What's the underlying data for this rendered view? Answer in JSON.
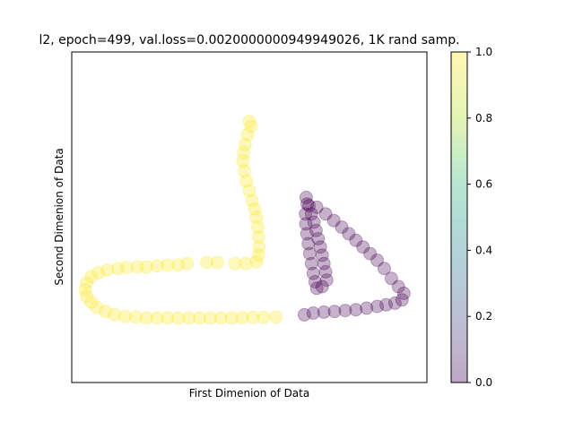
{
  "chart_data": {
    "type": "scatter",
    "title": "l2, epoch=499, val.loss=0.0020000000949949026, 1K rand samp.",
    "xlabel": "First Dimenion of Data",
    "ylabel": "Second Dimenion of Data",
    "xlim": [
      0,
      100
    ],
    "ylim": [
      0,
      100
    ],
    "x_ticks_visible": false,
    "y_ticks_visible": false,
    "grid": false,
    "colormap": "viridis",
    "colorbar": {
      "range": [
        0.0,
        1.0
      ],
      "ticks": [
        "0.0",
        "0.2",
        "0.4",
        "0.6",
        "0.8",
        "1.0"
      ],
      "low_color": "#440154",
      "high_color": "#fde725"
    },
    "marker_alpha": 0.3,
    "series": [
      {
        "label_value": 1.0,
        "color": "#fde725",
        "points": [
          [
            50.0,
            79.0
          ],
          [
            50.5,
            77.5
          ],
          [
            49.5,
            75.0
          ],
          [
            48.8,
            72.0
          ],
          [
            48.4,
            69.5
          ],
          [
            48.2,
            67.0
          ],
          [
            48.6,
            64.0
          ],
          [
            49.2,
            61.0
          ],
          [
            50.0,
            58.0
          ],
          [
            50.8,
            55.0
          ],
          [
            51.5,
            52.5
          ],
          [
            52.0,
            50.0
          ],
          [
            52.4,
            47.0
          ],
          [
            52.6,
            44.0
          ],
          [
            52.7,
            41.0
          ],
          [
            52.6,
            38.5
          ],
          [
            52.0,
            36.5
          ],
          [
            49.0,
            36.0
          ],
          [
            46.0,
            36.0
          ],
          [
            41.0,
            36.3
          ],
          [
            38.0,
            36.3
          ],
          [
            32.5,
            36.0
          ],
          [
            30.0,
            35.5
          ],
          [
            27.0,
            35.5
          ],
          [
            24.0,
            35.3
          ],
          [
            21.0,
            35.0
          ],
          [
            18.5,
            35.0
          ],
          [
            15.5,
            34.8
          ],
          [
            13.0,
            34.5
          ],
          [
            10.0,
            34.0
          ],
          [
            7.5,
            33.2
          ],
          [
            5.5,
            32.0
          ],
          [
            4.2,
            30.2
          ],
          [
            3.8,
            28.0
          ],
          [
            4.2,
            26.0
          ],
          [
            5.5,
            24.3
          ],
          [
            7.0,
            22.8
          ],
          [
            9.5,
            21.5
          ],
          [
            12.0,
            20.5
          ],
          [
            15.0,
            20.0
          ],
          [
            18.0,
            19.8
          ],
          [
            21.0,
            19.5
          ],
          [
            24.0,
            19.5
          ],
          [
            27.0,
            19.5
          ],
          [
            30.0,
            19.5
          ],
          [
            33.0,
            19.5
          ],
          [
            36.0,
            19.5
          ],
          [
            39.0,
            19.5
          ],
          [
            42.0,
            19.5
          ],
          [
            45.0,
            19.5
          ],
          [
            48.0,
            19.6
          ],
          [
            51.0,
            19.7
          ],
          [
            54.0,
            19.7
          ],
          [
            57.5,
            19.8
          ]
        ]
      },
      {
        "label_value": 0.0,
        "color": "#440154",
        "points": [
          [
            66.0,
            56.0
          ],
          [
            66.8,
            53.5
          ],
          [
            67.5,
            51.0
          ],
          [
            68.2,
            48.5
          ],
          [
            68.8,
            46.0
          ],
          [
            69.4,
            43.5
          ],
          [
            70.0,
            41.0
          ],
          [
            70.5,
            38.5
          ],
          [
            71.0,
            36.0
          ],
          [
            71.5,
            33.5
          ],
          [
            71.8,
            31.0
          ],
          [
            70.5,
            29.0
          ],
          [
            69.0,
            28.5
          ],
          [
            68.5,
            30.5
          ],
          [
            68.0,
            33.0
          ],
          [
            67.5,
            36.0
          ],
          [
            67.0,
            39.0
          ],
          [
            66.6,
            42.0
          ],
          [
            66.2,
            45.0
          ],
          [
            65.9,
            48.0
          ],
          [
            65.8,
            51.0
          ],
          [
            66.3,
            54.0
          ],
          [
            69.0,
            53.0
          ],
          [
            71.5,
            51.0
          ],
          [
            73.8,
            49.0
          ],
          [
            76.0,
            47.0
          ],
          [
            78.0,
            45.0
          ],
          [
            80.0,
            43.0
          ],
          [
            82.0,
            41.0
          ],
          [
            84.0,
            39.0
          ],
          [
            86.0,
            37.0
          ],
          [
            88.0,
            34.5
          ],
          [
            90.0,
            31.5
          ],
          [
            92.0,
            29.0
          ],
          [
            93.5,
            27.0
          ],
          [
            93.0,
            25.0
          ],
          [
            91.0,
            24.0
          ],
          [
            88.5,
            23.5
          ],
          [
            86.0,
            23.0
          ],
          [
            83.0,
            22.5
          ],
          [
            80.0,
            22.0
          ],
          [
            77.0,
            21.8
          ],
          [
            74.0,
            21.5
          ],
          [
            71.0,
            21.3
          ],
          [
            68.0,
            21.0
          ],
          [
            65.5,
            20.5
          ]
        ]
      }
    ]
  }
}
